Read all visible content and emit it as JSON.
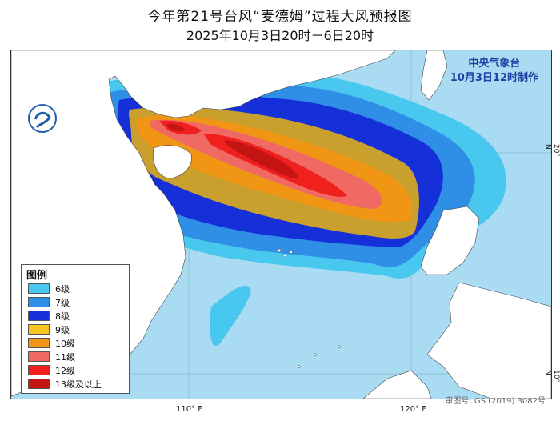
{
  "title": "今年第21号台风“麦德姆”过程大风预报图",
  "subtitle": "2025年10月3日20时－6日20时",
  "agency": {
    "name": "中央气象台",
    "issued": "10月3日12时制作"
  },
  "legend": {
    "title": "图例",
    "items": [
      {
        "label": "6级",
        "color": "#48c8ee"
      },
      {
        "label": "7级",
        "color": "#2f8fe6"
      },
      {
        "label": "8级",
        "color": "#1530d8"
      },
      {
        "label": "9级",
        "color": "#f3c51d"
      },
      {
        "label": "10级",
        "color": "#f19515"
      },
      {
        "label": "11级",
        "color": "#f06a63"
      },
      {
        "label": "12级",
        "color": "#f0201f"
      },
      {
        "label": "13级及以上",
        "color": "#c41414"
      }
    ]
  },
  "axes": {
    "lon": [
      "110° E",
      "120° E"
    ],
    "lat": [
      "20° N",
      "10° N"
    ]
  },
  "approval_number": "审图号: GS (2019) 3082号",
  "colors": {
    "sea": "#a9dcf2",
    "land": "#ffffff",
    "border": "#333333"
  }
}
